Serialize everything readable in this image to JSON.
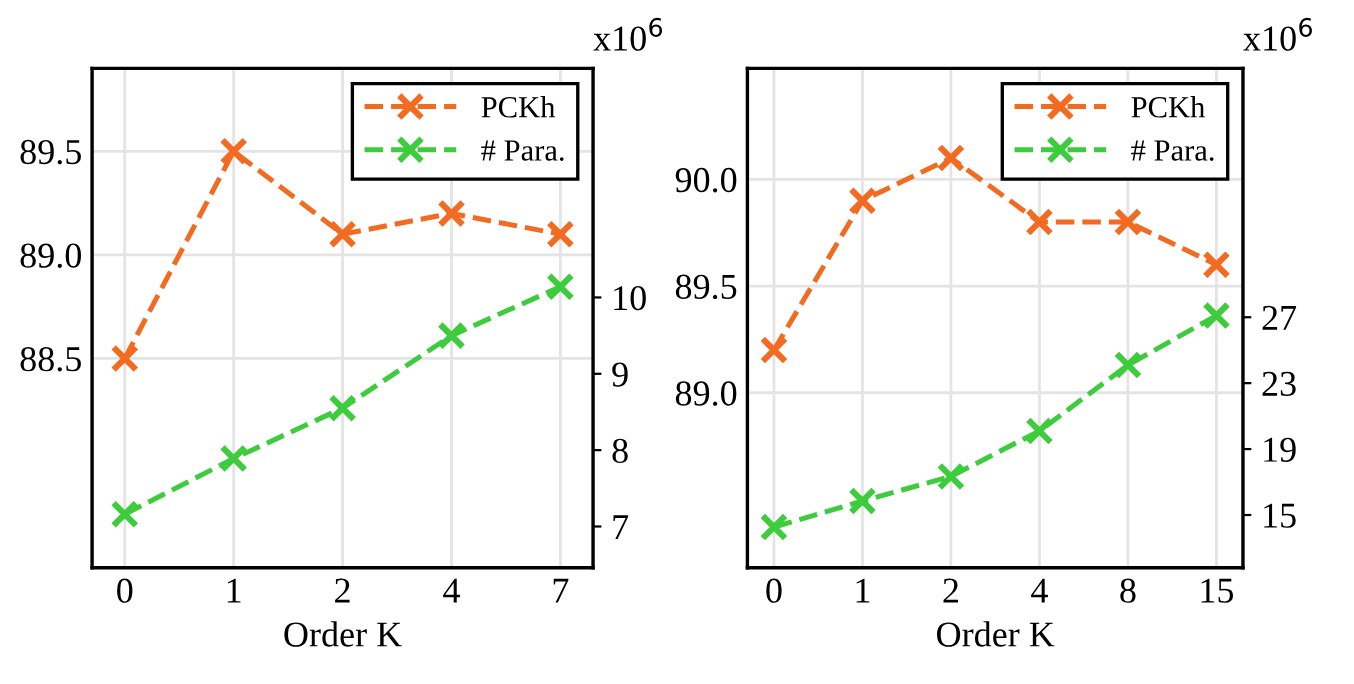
{
  "chart_data": [
    {
      "type": "line",
      "categories": [
        "0",
        "1",
        "2",
        "4",
        "7"
      ],
      "xlabel": "Order K",
      "y2label": "x10$^{6}$",
      "ylim": [
        87.49,
        89.9
      ],
      "yticks": [
        {
          "value": 88.5,
          "label": "88.5"
        },
        {
          "value": 89.0,
          "label": "89.0"
        },
        {
          "value": 89.5,
          "label": "89.5"
        }
      ],
      "y2lim": [
        6.46,
        13.0
      ],
      "y2ticks": [
        7,
        8,
        9,
        10
      ],
      "grid": true,
      "legend": "top right",
      "marker": "cross",
      "line_style": "dashed",
      "series": [
        {
          "name": "PCKh",
          "color": "#f26b21",
          "values": [
            88.5,
            89.5,
            89.1,
            89.2,
            89.1
          ]
        },
        {
          "name": "# Para.",
          "color": "#3ccc3c",
          "axis": "y2",
          "values": [
            7.16,
            7.89,
            8.55,
            9.5,
            10.14
          ]
        }
      ]
    },
    {
      "type": "line",
      "categories": [
        "0",
        "1",
        "2",
        "4",
        "8",
        "15"
      ],
      "xlabel": "Order K",
      "y2label": "x10$^{6}$",
      "ylim": [
        88.18,
        90.52
      ],
      "yticks": [
        {
          "value": 89.0,
          "label": "89.0"
        },
        {
          "value": 89.5,
          "label": "89.5"
        },
        {
          "value": 90.0,
          "label": "90.0"
        }
      ],
      "y2lim": [
        11.8,
        42.1
      ],
      "y2ticks": [
        15,
        19,
        23,
        27
      ],
      "grid": true,
      "legend": "top right",
      "marker": "cross",
      "line_style": "dashed",
      "series": [
        {
          "name": "PCKh",
          "color": "#f26b21",
          "values": [
            89.2,
            89.9,
            90.1,
            89.8,
            89.8,
            89.6
          ]
        },
        {
          "name": "# Para.",
          "color": "#3ccc3c",
          "axis": "y2",
          "values": [
            14.27,
            15.85,
            17.34,
            20.1,
            24.1,
            27.1
          ]
        }
      ]
    }
  ]
}
